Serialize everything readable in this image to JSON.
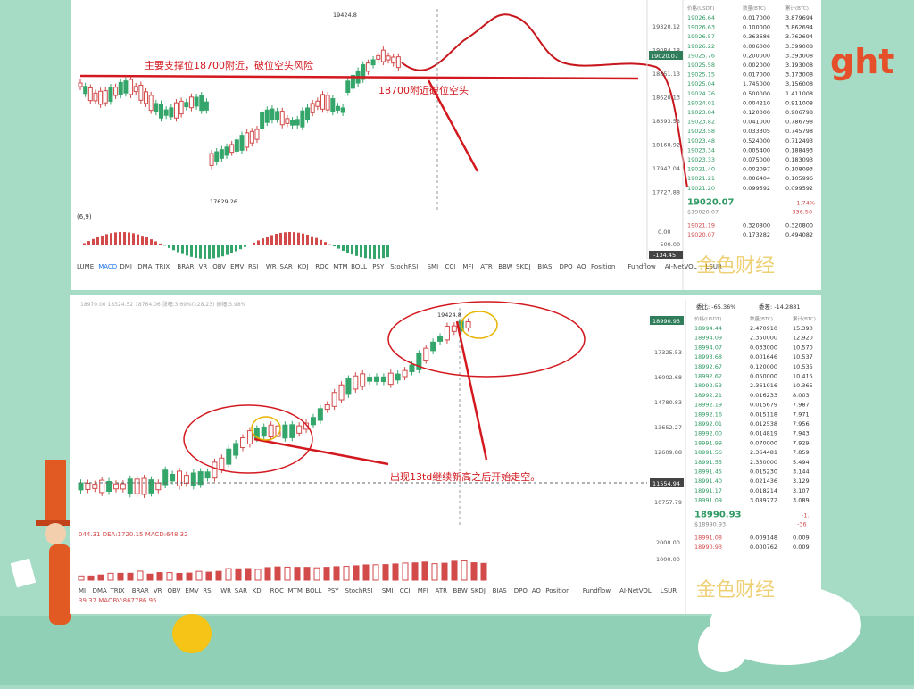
{
  "background_text": "ght",
  "watermark": "金色财经",
  "top_panel": {
    "price_ticks": [
      "19320.12",
      "19084.18",
      "18851.13",
      "18620.13",
      "18393.53",
      "18168.92",
      "17947.04",
      "17727.88"
    ],
    "high_label": "19424.8",
    "low_label": "17629.26",
    "annotation_1": "主要支撑位18700附近，破位空头风险",
    "annotation_2": "18700附近破位空头",
    "indicator_label": "(6,9)",
    "macd_ticks": [
      "0.00",
      "-500.00"
    ],
    "macd_value": "-134.45",
    "tabs": [
      "LUME",
      "MACD",
      "DMI",
      "DMA",
      "TRIX",
      "BRAR",
      "VR",
      "OBV",
      "EMV",
      "RSI",
      "WR",
      "SAR",
      "KDJ",
      "ROC",
      "MTM",
      "BOLL",
      "PSY",
      "StochRSI",
      "SMI",
      "CCI",
      "MFI",
      "ATR",
      "BBW",
      "SKDJ",
      "BIAS",
      "DPO",
      "AO",
      "Position",
      "Fundflow",
      "AI-NetVOL",
      "LSUR"
    ],
    "order_book": {
      "headers": [
        "价格(USDT)",
        "数量(BTC)",
        "累计(BTC)"
      ],
      "asks": [
        [
          "19026.64",
          "0.017000",
          "3.879694"
        ],
        [
          "19026.63",
          "0.100000",
          "3.862694"
        ],
        [
          "19026.57",
          "0.363686",
          "3.762694"
        ],
        [
          "19026.22",
          "0.006000",
          "3.399008"
        ],
        [
          "19025.76",
          "0.200000",
          "3.393008"
        ],
        [
          "19025.58",
          "0.002000",
          "3.193008"
        ],
        [
          "19025.15",
          "0.017000",
          "3.173008"
        ],
        [
          "19025.04",
          "1.745000",
          "3.156008"
        ],
        [
          "19024.76",
          "0.500000",
          "1.411008"
        ],
        [
          "19024.01",
          "0.004210",
          "0.911008"
        ],
        [
          "19023.84",
          "0.120000",
          "0.906798"
        ],
        [
          "19023.82",
          "0.041000",
          "0.786798"
        ],
        [
          "19023.58",
          "0.033305",
          "0.745798"
        ],
        [
          "19023.48",
          "0.524000",
          "0.712493"
        ],
        [
          "19023.34",
          "0.005400",
          "0.188493"
        ],
        [
          "19023.33",
          "0.075000",
          "0.183093"
        ],
        [
          "19021.40",
          "0.002097",
          "0.108093"
        ],
        [
          "19021.21",
          "0.006404",
          "0.105996"
        ],
        [
          "19021.20",
          "0.099592",
          "0.099592"
        ]
      ],
      "last_price": "19020.07",
      "change": "-1.74%",
      "usd_price": "$19020.07",
      "change_abs": "-336.50",
      "bids": [
        [
          "19021.19",
          "0.320800",
          "0.320800"
        ],
        [
          "19020.07",
          "0.173282",
          "0.494082"
        ]
      ]
    },
    "current_price_label": "19020.07"
  },
  "bottom_panel": {
    "header_line": "18970.00 18324.52 18764.06 涨幅:3.69%(128.23) 振幅:3.98%",
    "price_ticks": [
      "17325.53",
      "16002.68",
      "14780.83",
      "13652.27",
      "12609.88",
      "10757.79"
    ],
    "current_price_label": "18990.93",
    "line_label": "11554.94",
    "high_label": "19424.8",
    "annotation": "出现13td继续新高之后开始走空。",
    "macd_line": "044.31 DEA:1720.15 MACD:648.32",
    "obv_line": "39.37 MAOBV:867786.95",
    "macd_ticks": [
      "2000.00",
      "1000.00"
    ],
    "tabs": [
      "MI",
      "DMA",
      "TRIX",
      "BRAR",
      "VR",
      "OBV",
      "EMV",
      "RSI",
      "WR",
      "SAR",
      "KDJ",
      "ROC",
      "MTM",
      "BOLL",
      "PSY",
      "StochRSI",
      "SMI",
      "CCI",
      "MFI",
      "ATR",
      "BBW",
      "SKDJ",
      "BIAS",
      "DPO",
      "AO",
      "Position",
      "Fundflow",
      "AI-NetVOL",
      "LSUR"
    ],
    "order_book": {
      "ratio": "委比: -65.36%",
      "diff": "委差: -14.2881",
      "headers": [
        "价格(USDT)",
        "数量(BTC)",
        "累计(BTC)"
      ],
      "asks": [
        [
          "18994.44",
          "2.470910",
          "15.390"
        ],
        [
          "18994.09",
          "2.350000",
          "12.920"
        ],
        [
          "18994.07",
          "0.033000",
          "10.570"
        ],
        [
          "18993.68",
          "0.001646",
          "10.537"
        ],
        [
          "18992.67",
          "0.120000",
          "10.535"
        ],
        [
          "18992.62",
          "0.050000",
          "10.415"
        ],
        [
          "18992.53",
          "2.361916",
          "10.365"
        ],
        [
          "18992.21",
          "0.016233",
          "8.003"
        ],
        [
          "18992.19",
          "0.015679",
          "7.987"
        ],
        [
          "18992.16",
          "0.015118",
          "7.971"
        ],
        [
          "18992.01",
          "0.012538",
          "7.956"
        ],
        [
          "18992.00",
          "0.014819",
          "7.943"
        ],
        [
          "18991.99",
          "0.070000",
          "7.929"
        ],
        [
          "18991.56",
          "2.364481",
          "7.859"
        ],
        [
          "18991.55",
          "2.350000",
          "5.494"
        ],
        [
          "18991.45",
          "0.015230",
          "3.144"
        ],
        [
          "18991.40",
          "0.021436",
          "3.129"
        ],
        [
          "18991.17",
          "0.018214",
          "3.107"
        ],
        [
          "18991.09",
          "3.089772",
          "3.089"
        ]
      ],
      "last_price": "18990.93",
      "change": "-1.",
      "usd_price": "$18990.93",
      "change_abs": "-36",
      "bids": [
        [
          "18991.08",
          "0.009148",
          "0.009"
        ],
        [
          "18990.93",
          "0.000762",
          "0.009"
        ]
      ]
    }
  }
}
